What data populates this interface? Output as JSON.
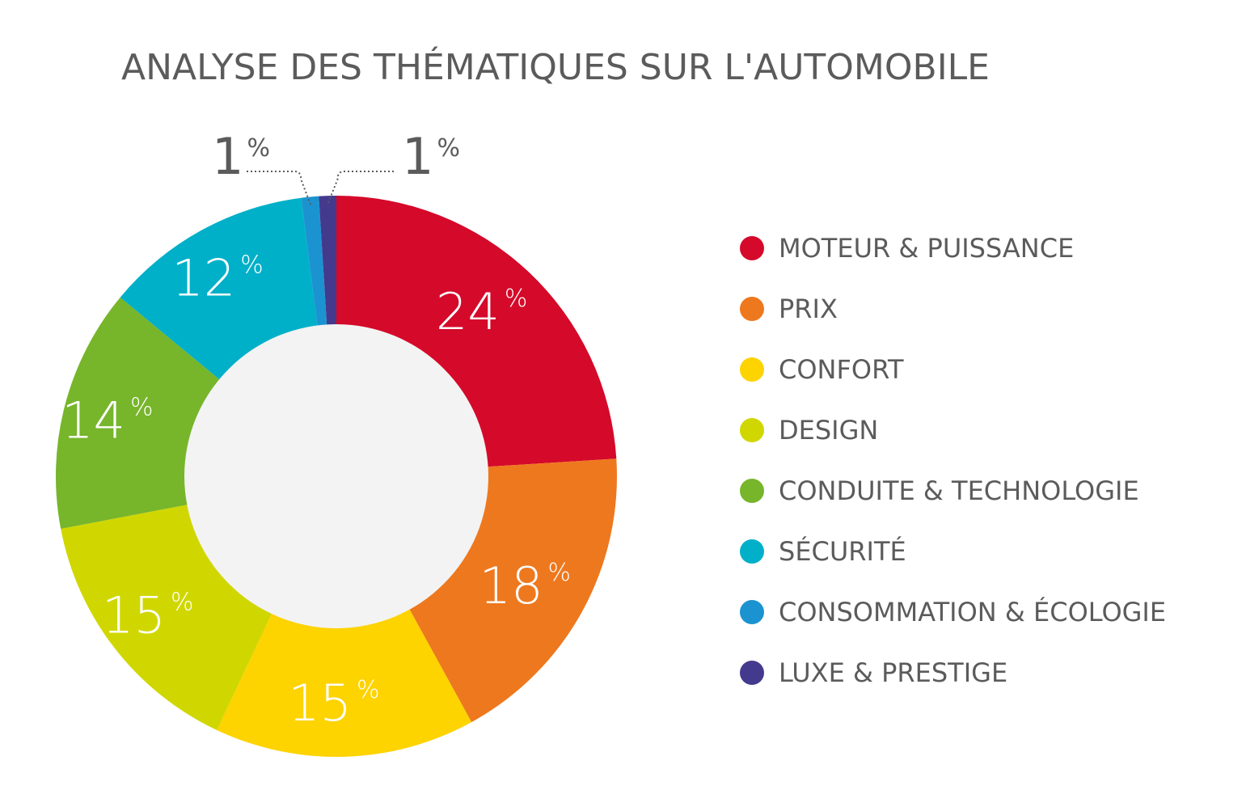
{
  "chart_data": {
    "type": "pie",
    "title": "ANALYSE DES THÉMATIQUES SUR L'AUTOMOBILE",
    "percent_symbol": "%",
    "slices": [
      {
        "label": "MOTEUR & PUISSANCE",
        "value": 24,
        "value_text": "24",
        "color": "#d5092a"
      },
      {
        "label": "PRIX",
        "value": 18,
        "value_text": "18",
        "color": "#ee781e"
      },
      {
        "label": "CONFORT",
        "value": 15,
        "value_text": "15",
        "color": "#fdd300"
      },
      {
        "label": "DESIGN",
        "value": 15,
        "value_text": "15",
        "color": "#d0d700"
      },
      {
        "label": "CONDUITE & TECHNOLOGIE",
        "value": 14,
        "value_text": "14",
        "color": "#77b52b"
      },
      {
        "label": "SÉCURITÉ",
        "value": 12,
        "value_text": "12",
        "color": "#00b0c8"
      },
      {
        "label": "CONSOMMATION & ÉCOLOGIE",
        "value": 1,
        "value_text": "1",
        "color": "#1b93d1"
      },
      {
        "label": "LUXE & PRESTIGE",
        "value": 1,
        "value_text": "1",
        "color": "#433a8d"
      }
    ],
    "center_color": "#f3f3f3",
    "legend_position": "right"
  }
}
